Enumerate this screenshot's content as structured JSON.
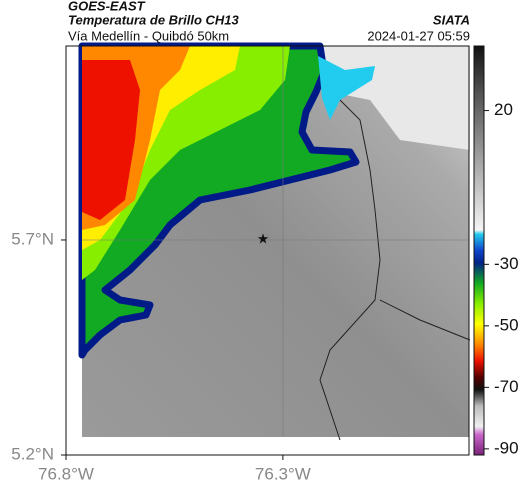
{
  "map": {
    "header": {
      "product": "GOES-EAST",
      "title": "Temperatura de Brillo CH13",
      "subtitle": "Vía Medellín - Quibdó 50km",
      "source": "SIATA",
      "datetime": "2024-01-27 05:59"
    },
    "lat_range": [
      5.2,
      6.151
    ],
    "lon_range": [
      -76.8,
      -75.871
    ],
    "lat_ticks": [
      {
        "value": 5.7,
        "label": "5.7°N"
      },
      {
        "value": 5.2,
        "label": "5.2°N"
      }
    ],
    "lon_ticks": [
      {
        "value": -76.8,
        "label": "76.8°W"
      },
      {
        "value": -76.3,
        "label": "76.3°W"
      }
    ],
    "colorbar": {
      "range": [
        -92,
        41
      ],
      "ticks": [
        20,
        -30,
        -50,
        -70,
        -90
      ]
    }
  }
}
